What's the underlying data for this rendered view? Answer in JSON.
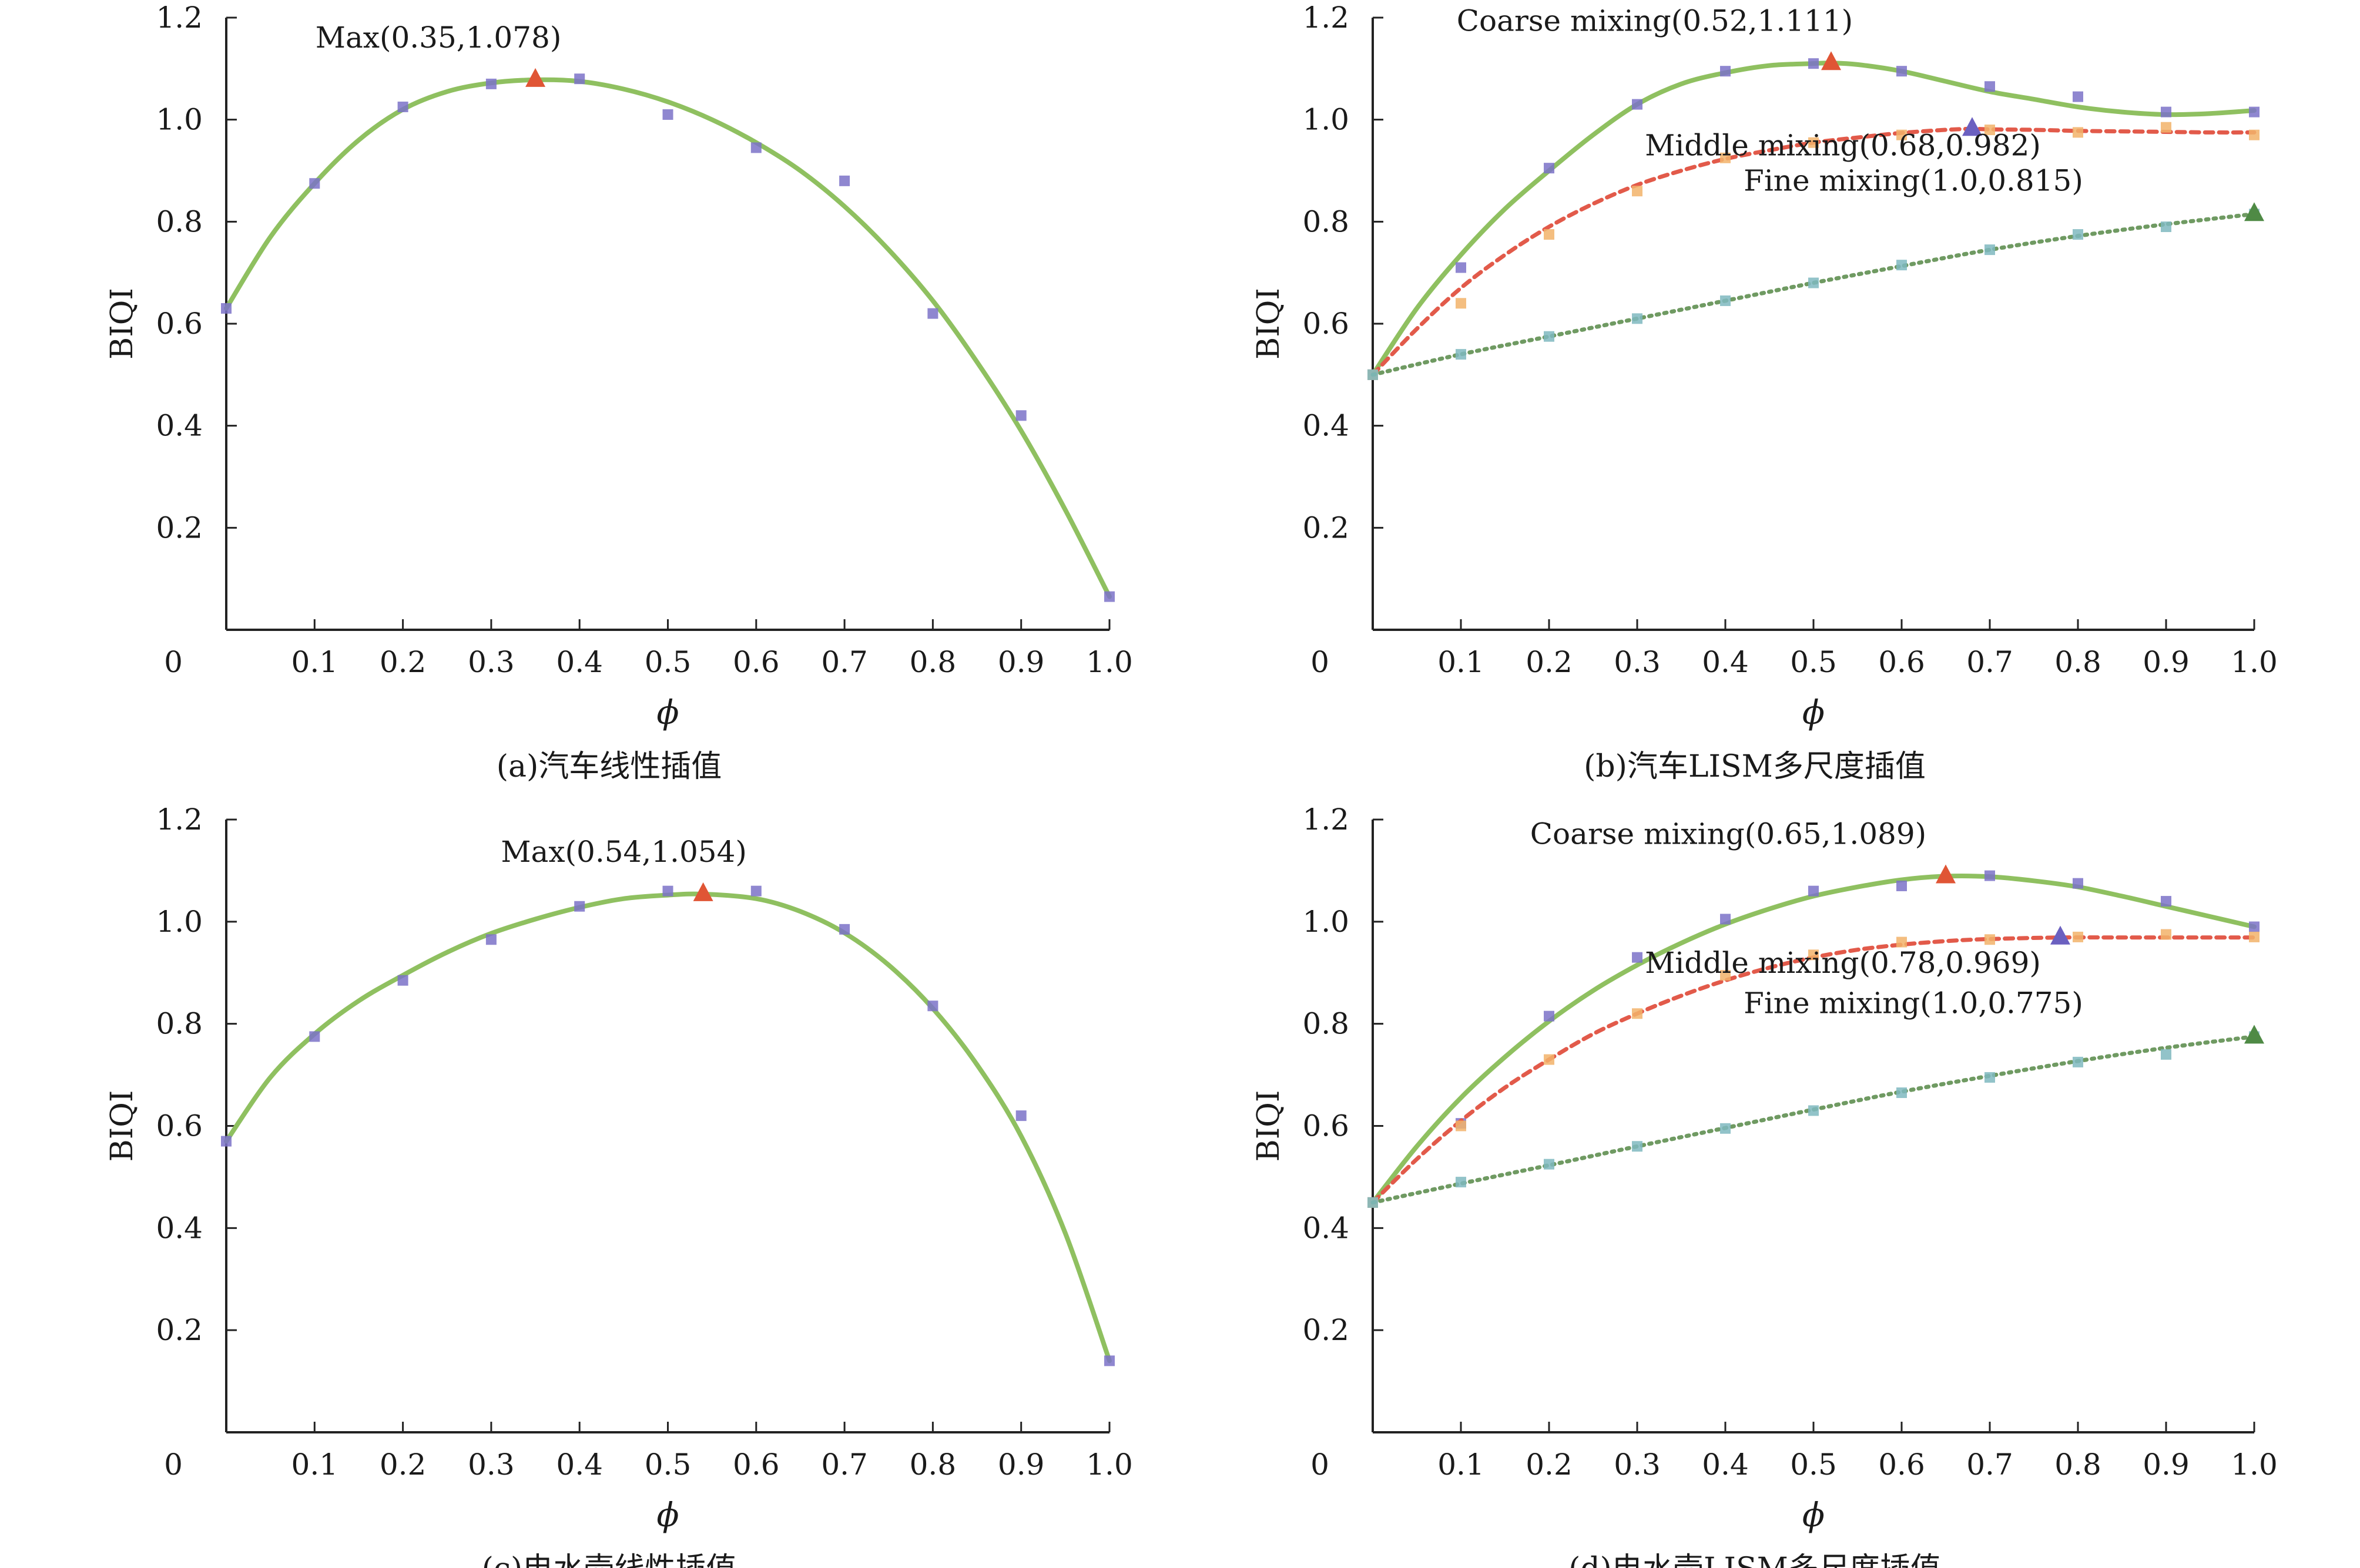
{
  "figure": {
    "panels": [
      {
        "id": "a",
        "caption": "(a)汽车线性插值",
        "ylabel": "BIQI",
        "xlabel": "ϕ",
        "origin_label": "0",
        "x_tick_labels": [
          "0.1",
          "0.2",
          "0.3",
          "0.4",
          "0.5",
          "0.6",
          "0.7",
          "0.8",
          "0.9",
          "1.0"
        ],
        "y_tick_labels": [
          "0.2",
          "0.4",
          "0.6",
          "0.8",
          "1.0",
          "1.2"
        ]
      },
      {
        "id": "b",
        "caption": "(b)汽车LISM多尺度插值",
        "ylabel": "BIQI",
        "xlabel": "ϕ",
        "origin_label": "0",
        "x_tick_labels": [
          "0.1",
          "0.2",
          "0.3",
          "0.4",
          "0.5",
          "0.6",
          "0.7",
          "0.8",
          "0.9",
          "1.0"
        ],
        "y_tick_labels": [
          "0.2",
          "0.4",
          "0.6",
          "0.8",
          "1.0",
          "1.2"
        ]
      },
      {
        "id": "c",
        "caption": "(c)电水壶线性插值",
        "ylabel": "BIQI",
        "xlabel": "ϕ",
        "origin_label": "0",
        "x_tick_labels": [
          "0.1",
          "0.2",
          "0.3",
          "0.4",
          "0.5",
          "0.6",
          "0.7",
          "0.8",
          "0.9",
          "1.0"
        ],
        "y_tick_labels": [
          "0.2",
          "0.4",
          "0.6",
          "0.8",
          "1.0",
          "1.2"
        ]
      },
      {
        "id": "d",
        "caption": "(d)电水壶LISM多尺度插值",
        "ylabel": "BIQI",
        "xlabel": "ϕ",
        "origin_label": "0",
        "x_tick_labels": [
          "0.1",
          "0.2",
          "0.3",
          "0.4",
          "0.5",
          "0.6",
          "0.7",
          "0.8",
          "0.9",
          "1.0"
        ],
        "y_tick_labels": [
          "0.2",
          "0.4",
          "0.6",
          "0.8",
          "1.0",
          "1.2"
        ]
      }
    ]
  },
  "colors": {
    "coarse_curve": "#8fc060",
    "middle_curve": "#e25a4a",
    "fine_curve": "#6f9a62",
    "coarse_points": "#7b72c8",
    "middle_points": "#f2b36a",
    "fine_points": "#7fb8c0",
    "max_marker": "#e05535",
    "middle_max_marker": "#6b60c0",
    "fine_max_marker": "#4f8a45",
    "axis": "#222222"
  },
  "chart_data": [
    {
      "type": "line",
      "panel": "a",
      "title": "",
      "caption": "(a)汽车线性插值",
      "xlabel": "ϕ",
      "ylabel": "BIQI",
      "xlim": [
        0,
        1.0
      ],
      "ylim": [
        0,
        1.2
      ],
      "grid": false,
      "series": [
        {
          "style": "solid",
          "color": "#8fc060",
          "points_x": [
            0.0,
            0.1,
            0.2,
            0.3,
            0.4,
            0.5,
            0.6,
            0.7,
            0.8,
            0.9,
            1.0
          ],
          "points_y": [
            0.63,
            0.875,
            1.025,
            1.07,
            1.08,
            1.01,
            0.945,
            0.88,
            0.62,
            0.42,
            0.065
          ],
          "curve_x": [
            0.0,
            0.05,
            0.1,
            0.15,
            0.2,
            0.25,
            0.3,
            0.35,
            0.4,
            0.45,
            0.5,
            0.55,
            0.6,
            0.65,
            0.7,
            0.75,
            0.8,
            0.85,
            0.9,
            0.95,
            1.0
          ],
          "curve_y": [
            0.63,
            0.77,
            0.875,
            0.96,
            1.02,
            1.055,
            1.072,
            1.078,
            1.075,
            1.06,
            1.035,
            1.0,
            0.955,
            0.9,
            0.83,
            0.745,
            0.645,
            0.525,
            0.39,
            0.235,
            0.065
          ]
        }
      ],
      "annotations": [
        {
          "text": "Max(0.35,1.078)",
          "x": 0.35,
          "y": 1.078,
          "marker": "triangle",
          "color": "#e05535"
        }
      ]
    },
    {
      "type": "line",
      "panel": "b",
      "title": "",
      "caption": "(b)汽车LISM多尺度插值",
      "xlabel": "ϕ",
      "ylabel": "BIQI",
      "xlim": [
        0,
        1.0
      ],
      "ylim": [
        0,
        1.2
      ],
      "grid": false,
      "series": [
        {
          "style": "solid",
          "color": "#8fc060",
          "point_color": "#7b72c8",
          "points_x": [
            0.0,
            0.1,
            0.2,
            0.3,
            0.4,
            0.5,
            0.6,
            0.7,
            0.8,
            0.9,
            1.0
          ],
          "points_y": [
            0.5,
            0.71,
            0.905,
            1.03,
            1.095,
            1.11,
            1.095,
            1.065,
            1.045,
            1.015,
            1.015
          ],
          "curve_x": [
            0.0,
            0.05,
            0.1,
            0.15,
            0.2,
            0.25,
            0.3,
            0.35,
            0.4,
            0.45,
            0.5,
            0.52,
            0.55,
            0.6,
            0.65,
            0.7,
            0.75,
            0.8,
            0.85,
            0.9,
            0.95,
            1.0
          ],
          "curve_y": [
            0.5,
            0.63,
            0.735,
            0.825,
            0.9,
            0.97,
            1.03,
            1.07,
            1.092,
            1.106,
            1.11,
            1.111,
            1.108,
            1.095,
            1.075,
            1.055,
            1.04,
            1.025,
            1.015,
            1.01,
            1.012,
            1.018
          ]
        },
        {
          "style": "dashed",
          "color": "#e25a4a",
          "point_color": "#f2b36a",
          "points_x": [
            0.0,
            0.1,
            0.2,
            0.3,
            0.4,
            0.5,
            0.6,
            0.7,
            0.8,
            0.9,
            1.0
          ],
          "points_y": [
            0.5,
            0.64,
            0.775,
            0.86,
            0.925,
            0.955,
            0.97,
            0.98,
            0.975,
            0.985,
            0.97
          ],
          "curve_x": [
            0.0,
            0.05,
            0.1,
            0.15,
            0.2,
            0.25,
            0.3,
            0.35,
            0.4,
            0.45,
            0.5,
            0.55,
            0.6,
            0.65,
            0.68,
            0.7,
            0.75,
            0.8,
            0.85,
            0.9,
            0.95,
            1.0
          ],
          "curve_y": [
            0.5,
            0.59,
            0.67,
            0.735,
            0.79,
            0.835,
            0.872,
            0.9,
            0.923,
            0.94,
            0.955,
            0.965,
            0.974,
            0.98,
            0.982,
            0.981,
            0.98,
            0.978,
            0.977,
            0.976,
            0.975,
            0.975
          ]
        },
        {
          "style": "dotted",
          "color": "#6f9a62",
          "point_color": "#7fb8c0",
          "points_x": [
            0.0,
            0.1,
            0.2,
            0.3,
            0.4,
            0.5,
            0.6,
            0.7,
            0.8,
            0.9,
            1.0
          ],
          "points_y": [
            0.5,
            0.54,
            0.575,
            0.61,
            0.645,
            0.68,
            0.715,
            0.745,
            0.775,
            0.79,
            0.815
          ],
          "curve_x": [
            0.0,
            0.1,
            0.2,
            0.3,
            0.4,
            0.5,
            0.6,
            0.7,
            0.8,
            0.9,
            1.0
          ],
          "curve_y": [
            0.5,
            0.54,
            0.575,
            0.61,
            0.645,
            0.68,
            0.713,
            0.745,
            0.772,
            0.795,
            0.815
          ]
        }
      ],
      "annotations": [
        {
          "text": "Coarse mixing(0.52,1.111)",
          "x": 0.52,
          "y": 1.111,
          "marker": "triangle",
          "color": "#e05535"
        },
        {
          "text": "Middle mixing(0.68,0.982)",
          "x": 0.68,
          "y": 0.982,
          "marker": "triangle",
          "color": "#6b60c0"
        },
        {
          "text": "Fine mixing(1.0,0.815)",
          "x": 1.0,
          "y": 0.815,
          "marker": "triangle",
          "color": "#4f8a45"
        }
      ]
    },
    {
      "type": "line",
      "panel": "c",
      "title": "",
      "caption": "(c)电水壶线性插值",
      "xlabel": "ϕ",
      "ylabel": "BIQI",
      "xlim": [
        0,
        1.0
      ],
      "ylim": [
        0,
        1.2
      ],
      "grid": false,
      "series": [
        {
          "style": "solid",
          "color": "#8fc060",
          "points_x": [
            0.0,
            0.1,
            0.2,
            0.3,
            0.4,
            0.5,
            0.6,
            0.7,
            0.8,
            0.9,
            1.0
          ],
          "points_y": [
            0.57,
            0.775,
            0.885,
            0.965,
            1.03,
            1.06,
            1.06,
            0.985,
            0.835,
            0.62,
            0.14
          ],
          "curve_x": [
            0.0,
            0.05,
            0.1,
            0.15,
            0.2,
            0.25,
            0.3,
            0.35,
            0.4,
            0.45,
            0.5,
            0.54,
            0.6,
            0.65,
            0.7,
            0.75,
            0.8,
            0.85,
            0.9,
            0.95,
            1.0
          ],
          "curve_y": [
            0.57,
            0.695,
            0.78,
            0.845,
            0.895,
            0.94,
            0.977,
            1.005,
            1.028,
            1.045,
            1.052,
            1.054,
            1.045,
            1.02,
            0.978,
            0.915,
            0.83,
            0.72,
            0.58,
            0.39,
            0.14
          ]
        }
      ],
      "annotations": [
        {
          "text": "Max(0.54,1.054)",
          "x": 0.54,
          "y": 1.054,
          "marker": "triangle",
          "color": "#e05535"
        }
      ]
    },
    {
      "type": "line",
      "panel": "d",
      "title": "",
      "caption": "(d)电水壶LISM多尺度插值",
      "xlabel": "ϕ",
      "ylabel": "BIQI",
      "xlim": [
        0,
        1.0
      ],
      "ylim": [
        0,
        1.2
      ],
      "grid": false,
      "series": [
        {
          "style": "solid",
          "color": "#8fc060",
          "point_color": "#7b72c8",
          "points_x": [
            0.0,
            0.1,
            0.2,
            0.3,
            0.4,
            0.5,
            0.6,
            0.7,
            0.8,
            0.9,
            1.0
          ],
          "points_y": [
            0.45,
            0.605,
            0.815,
            0.93,
            1.005,
            1.06,
            1.07,
            1.09,
            1.075,
            1.04,
            0.99
          ],
          "curve_x": [
            0.0,
            0.05,
            0.1,
            0.15,
            0.2,
            0.25,
            0.3,
            0.35,
            0.4,
            0.45,
            0.5,
            0.55,
            0.6,
            0.65,
            0.7,
            0.75,
            0.8,
            0.85,
            0.9,
            0.95,
            1.0
          ],
          "curve_y": [
            0.45,
            0.56,
            0.655,
            0.735,
            0.805,
            0.865,
            0.915,
            0.958,
            0.995,
            1.025,
            1.05,
            1.068,
            1.082,
            1.089,
            1.088,
            1.08,
            1.068,
            1.05,
            1.03,
            1.01,
            0.99
          ]
        },
        {
          "style": "dashed",
          "color": "#e25a4a",
          "point_color": "#f2b36a",
          "points_x": [
            0.0,
            0.1,
            0.2,
            0.3,
            0.4,
            0.5,
            0.6,
            0.7,
            0.8,
            0.9,
            1.0
          ],
          "points_y": [
            0.45,
            0.6,
            0.73,
            0.82,
            0.895,
            0.935,
            0.96,
            0.965,
            0.97,
            0.975,
            0.97
          ],
          "curve_x": [
            0.0,
            0.05,
            0.1,
            0.15,
            0.2,
            0.25,
            0.3,
            0.35,
            0.4,
            0.45,
            0.5,
            0.55,
            0.6,
            0.65,
            0.7,
            0.78,
            0.85,
            0.9,
            0.95,
            1.0
          ],
          "curve_y": [
            0.45,
            0.535,
            0.61,
            0.675,
            0.73,
            0.78,
            0.82,
            0.855,
            0.885,
            0.91,
            0.93,
            0.945,
            0.955,
            0.962,
            0.966,
            0.969,
            0.969,
            0.969,
            0.969,
            0.969
          ]
        },
        {
          "style": "dotted",
          "color": "#6f9a62",
          "point_color": "#7fb8c0",
          "points_x": [
            0.0,
            0.1,
            0.2,
            0.3,
            0.4,
            0.5,
            0.6,
            0.7,
            0.8,
            0.9,
            1.0
          ],
          "points_y": [
            0.45,
            0.49,
            0.525,
            0.56,
            0.595,
            0.63,
            0.665,
            0.695,
            0.725,
            0.74,
            0.775
          ],
          "curve_x": [
            0.0,
            0.1,
            0.2,
            0.3,
            0.4,
            0.5,
            0.6,
            0.7,
            0.8,
            0.9,
            1.0
          ],
          "curve_y": [
            0.45,
            0.487,
            0.523,
            0.56,
            0.596,
            0.632,
            0.667,
            0.698,
            0.727,
            0.753,
            0.775
          ]
        }
      ],
      "annotations": [
        {
          "text": "Coarse mixing(0.65,1.089)",
          "x": 0.65,
          "y": 1.089,
          "marker": "triangle",
          "color": "#e05535"
        },
        {
          "text": "Middle mixing(0.78,0.969)",
          "x": 0.78,
          "y": 0.969,
          "marker": "triangle",
          "color": "#6b60c0"
        },
        {
          "text": "Fine mixing(1.0,0.775)",
          "x": 1.0,
          "y": 0.775,
          "marker": "triangle",
          "color": "#4f8a45"
        }
      ]
    }
  ]
}
